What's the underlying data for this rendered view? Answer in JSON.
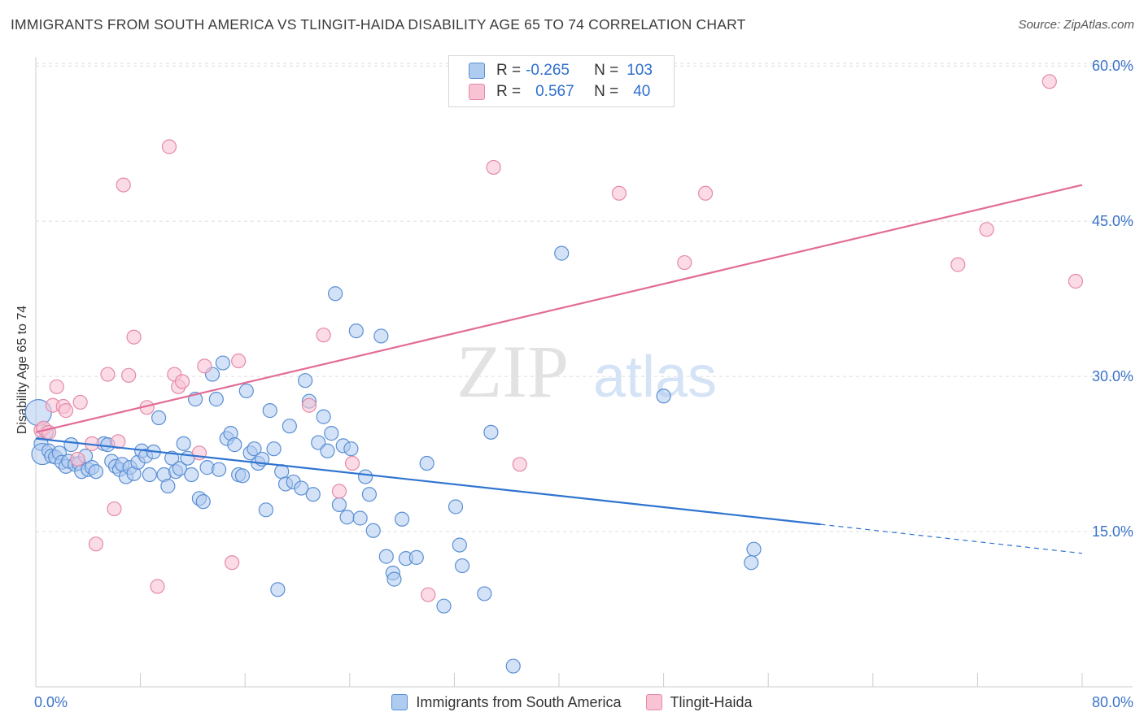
{
  "title": "IMMIGRANTS FROM SOUTH AMERICA VS TLINGIT-HAIDA DISABILITY AGE 65 TO 74 CORRELATION CHART",
  "source": "Source: ZipAtlas.com",
  "watermark": {
    "zip": "ZIP",
    "atlas": "atlas"
  },
  "legend": {
    "rows": [
      {
        "r_label": "R =",
        "r_value": "-0.265",
        "n_label": "N =",
        "n_value": "103"
      },
      {
        "r_label": "R =",
        "r_value": "0.567",
        "n_label": "N =",
        "n_value": "40"
      }
    ]
  },
  "colors": {
    "blue_fill": "#aecbf0",
    "blue_stroke": "#5b8fd4",
    "blue_line": "#2f74d0",
    "pink_fill": "#f8c3d3",
    "pink_stroke": "#e58aa8",
    "pink_line": "#e26c97",
    "tick_label": "#3b73c8",
    "grid": "#dddddd"
  },
  "chart_data": {
    "type": "scatter",
    "title": "IMMIGRANTS FROM SOUTH AMERICA VS TLINGIT-HAIDA DISABILITY AGE 65 TO 74 CORRELATION CHART",
    "xlabel": "",
    "ylabel": "Disability Age 65 to 74",
    "xlim": [
      0,
      80
    ],
    "ylim": [
      0,
      62
    ],
    "x_tick_labels": [
      "0.0%",
      "80.0%"
    ],
    "y_ticks": [
      15,
      30,
      45,
      60
    ],
    "y_tick_labels": [
      "15.0%",
      "30.0%",
      "45.0%",
      "60.0%"
    ],
    "grid": true,
    "legend_position": "top-center",
    "series": [
      {
        "name": "Immigrants from South America",
        "color": "#aecbf0",
        "trend": {
          "x": [
            0,
            60,
            80
          ],
          "y": [
            24.0,
            15.7,
            12.9
          ],
          "solid_until_x": 60
        },
        "points": [
          [
            0.2,
            26.5
          ],
          [
            0.4,
            23.5
          ],
          [
            0.5,
            22.5
          ],
          [
            0.8,
            24.6
          ],
          [
            1.0,
            22.8
          ],
          [
            1.2,
            22.3
          ],
          [
            1.5,
            22.2
          ],
          [
            1.8,
            22.6
          ],
          [
            2.0,
            21.7
          ],
          [
            2.3,
            21.3
          ],
          [
            2.5,
            21.8
          ],
          [
            2.7,
            23.4
          ],
          [
            3.0,
            21.5
          ],
          [
            3.3,
            21.6
          ],
          [
            3.5,
            20.8
          ],
          [
            3.8,
            22.3
          ],
          [
            4.0,
            21.0
          ],
          [
            4.3,
            21.2
          ],
          [
            4.6,
            20.8
          ],
          [
            5.2,
            23.5
          ],
          [
            5.5,
            23.4
          ],
          [
            5.8,
            21.8
          ],
          [
            6.1,
            21.3
          ],
          [
            6.4,
            21.0
          ],
          [
            6.6,
            21.5
          ],
          [
            6.9,
            20.3
          ],
          [
            7.2,
            21.2
          ],
          [
            7.5,
            20.6
          ],
          [
            7.8,
            21.7
          ],
          [
            8.1,
            22.8
          ],
          [
            8.4,
            22.3
          ],
          [
            8.7,
            20.5
          ],
          [
            9.0,
            22.7
          ],
          [
            9.4,
            26.0
          ],
          [
            9.8,
            20.5
          ],
          [
            10.1,
            19.4
          ],
          [
            10.4,
            22.1
          ],
          [
            10.7,
            20.8
          ],
          [
            11.0,
            21.1
          ],
          [
            11.3,
            23.5
          ],
          [
            11.6,
            22.1
          ],
          [
            11.9,
            20.5
          ],
          [
            12.2,
            27.8
          ],
          [
            12.5,
            18.2
          ],
          [
            12.8,
            17.9
          ],
          [
            13.1,
            21.2
          ],
          [
            13.5,
            30.2
          ],
          [
            13.8,
            27.8
          ],
          [
            14.0,
            21.0
          ],
          [
            14.3,
            31.3
          ],
          [
            14.6,
            24.0
          ],
          [
            14.9,
            24.5
          ],
          [
            15.2,
            23.4
          ],
          [
            15.5,
            20.5
          ],
          [
            15.8,
            20.4
          ],
          [
            16.1,
            28.6
          ],
          [
            16.4,
            22.6
          ],
          [
            16.7,
            23.0
          ],
          [
            17.0,
            21.6
          ],
          [
            17.3,
            22.0
          ],
          [
            17.6,
            17.1
          ],
          [
            17.9,
            26.7
          ],
          [
            18.2,
            23.0
          ],
          [
            18.5,
            9.4
          ],
          [
            18.8,
            20.8
          ],
          [
            19.1,
            19.6
          ],
          [
            19.4,
            25.2
          ],
          [
            19.7,
            19.8
          ],
          [
            20.3,
            19.2
          ],
          [
            20.6,
            29.6
          ],
          [
            20.9,
            27.6
          ],
          [
            21.2,
            18.6
          ],
          [
            21.6,
            23.6
          ],
          [
            22.0,
            26.1
          ],
          [
            22.3,
            22.8
          ],
          [
            22.6,
            24.5
          ],
          [
            22.9,
            38.0
          ],
          [
            23.2,
            17.6
          ],
          [
            23.5,
            23.3
          ],
          [
            23.8,
            16.4
          ],
          [
            24.1,
            23.0
          ],
          [
            24.5,
            34.4
          ],
          [
            24.8,
            16.3
          ],
          [
            25.2,
            20.3
          ],
          [
            25.5,
            18.6
          ],
          [
            25.8,
            15.1
          ],
          [
            26.4,
            33.9
          ],
          [
            26.8,
            12.6
          ],
          [
            27.3,
            11.0
          ],
          [
            27.4,
            10.4
          ],
          [
            28.0,
            16.2
          ],
          [
            28.3,
            12.4
          ],
          [
            29.1,
            12.5
          ],
          [
            29.9,
            21.6
          ],
          [
            31.2,
            7.8
          ],
          [
            32.1,
            17.4
          ],
          [
            32.4,
            13.7
          ],
          [
            32.6,
            11.7
          ],
          [
            34.3,
            9.0
          ],
          [
            34.8,
            24.6
          ],
          [
            36.5,
            2.0
          ],
          [
            40.2,
            41.9
          ],
          [
            48.0,
            28.1
          ],
          [
            54.7,
            12.0
          ],
          [
            54.9,
            13.3
          ]
        ]
      },
      {
        "name": "Tlingit-Haida",
        "color": "#f8c3d3",
        "trend": {
          "x": [
            0,
            80
          ],
          "y": [
            24.6,
            48.5
          ]
        },
        "points": [
          [
            0.4,
            24.8
          ],
          [
            0.6,
            25.0
          ],
          [
            1.0,
            24.6
          ],
          [
            1.3,
            27.2
          ],
          [
            1.6,
            29.0
          ],
          [
            2.1,
            27.1
          ],
          [
            2.3,
            26.7
          ],
          [
            3.2,
            22.0
          ],
          [
            3.4,
            27.5
          ],
          [
            4.3,
            23.5
          ],
          [
            4.6,
            13.8
          ],
          [
            5.5,
            30.2
          ],
          [
            6.0,
            17.2
          ],
          [
            6.3,
            23.7
          ],
          [
            6.7,
            48.5
          ],
          [
            7.1,
            30.1
          ],
          [
            7.5,
            33.8
          ],
          [
            8.5,
            27.0
          ],
          [
            9.3,
            9.7
          ],
          [
            10.2,
            52.2
          ],
          [
            10.6,
            30.2
          ],
          [
            10.9,
            29.0
          ],
          [
            11.2,
            29.5
          ],
          [
            12.5,
            22.6
          ],
          [
            12.9,
            31.0
          ],
          [
            15.0,
            12.0
          ],
          [
            15.5,
            31.5
          ],
          [
            20.9,
            27.2
          ],
          [
            22.0,
            34.0
          ],
          [
            23.2,
            18.9
          ],
          [
            24.2,
            21.6
          ],
          [
            30.0,
            8.9
          ],
          [
            35.0,
            50.2
          ],
          [
            37.0,
            21.5
          ],
          [
            44.6,
            47.7
          ],
          [
            49.6,
            41.0
          ],
          [
            51.2,
            47.7
          ],
          [
            70.5,
            40.8
          ],
          [
            72.7,
            44.2
          ],
          [
            77.5,
            58.5
          ],
          [
            79.5,
            39.2
          ]
        ]
      }
    ]
  }
}
